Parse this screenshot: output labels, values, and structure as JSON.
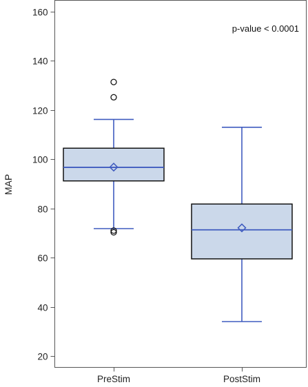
{
  "chart_data": {
    "type": "box",
    "ylabel": "MAP",
    "xlabel": "",
    "ylim": [
      18,
      162
    ],
    "yticks": [
      20,
      40,
      60,
      80,
      100,
      120,
      140,
      160
    ],
    "categories": [
      "PreStim",
      "PostStim"
    ],
    "annotation": "p-value < 0.0001",
    "grid": false,
    "box_fill": "#cbd8ea",
    "box_edge": "#111111",
    "line_color": "#3f5bbf",
    "boxes": [
      {
        "category": "PreStim",
        "whisker_low": 71.8,
        "q1": 91.2,
        "median": 96.7,
        "q3": 104.5,
        "whisker_high": 116.2,
        "mean": 96.8,
        "outliers": [
          70.3,
          71.0,
          125.2,
          131.4
        ]
      },
      {
        "category": "PostStim",
        "whisker_low": 34.0,
        "q1": 59.5,
        "median": 71.3,
        "q3": 81.8,
        "whisker_high": 113.0,
        "mean": 72.1,
        "outliers": []
      }
    ]
  }
}
